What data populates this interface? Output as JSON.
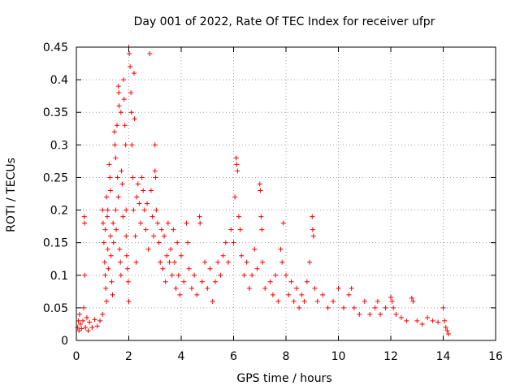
{
  "chart_data": {
    "type": "scatter",
    "title": "Day 001 of 2022, Rate Of TEC Index for receiver ufpr",
    "xlabel": "GPS time / hours",
    "ylabel": "ROTI / TECUs",
    "xlim": [
      0,
      16
    ],
    "ylim": [
      0,
      0.45
    ],
    "xticks": [
      "0",
      "2",
      "4",
      "6",
      "8",
      "10",
      "12",
      "14",
      "16"
    ],
    "yticks": [
      "0",
      "0.05",
      "0.1",
      "0.15",
      "0.2",
      "0.25",
      "0.3",
      "0.35",
      "0.4",
      "0.45"
    ],
    "grid": true,
    "marker": "plus",
    "color": "#ff0000",
    "points": [
      [
        0.05,
        0.02
      ],
      [
        0.08,
        0.03
      ],
      [
        0.1,
        0.015
      ],
      [
        0.12,
        0.04
      ],
      [
        0.15,
        0.025
      ],
      [
        0.2,
        0.018
      ],
      [
        0.25,
        0.03
      ],
      [
        0.28,
        0.05
      ],
      [
        0.3,
        0.19
      ],
      [
        0.31,
        0.18
      ],
      [
        0.32,
        0.1
      ],
      [
        0.35,
        0.02
      ],
      [
        0.4,
        0.035
      ],
      [
        0.45,
        0.015
      ],
      [
        0.5,
        0.028
      ],
      [
        0.6,
        0.02
      ],
      [
        0.7,
        0.032
      ],
      [
        0.8,
        0.022
      ],
      [
        0.9,
        0.03
      ],
      [
        1.0,
        0.04
      ],
      [
        1.0,
        0.2
      ],
      [
        1.02,
        0.18
      ],
      [
        1.05,
        0.15
      ],
      [
        1.08,
        0.12
      ],
      [
        1.1,
        0.1
      ],
      [
        1.12,
        0.08
      ],
      [
        1.15,
        0.06
      ],
      [
        1.1,
        0.17
      ],
      [
        1.15,
        0.22
      ],
      [
        1.18,
        0.19
      ],
      [
        1.2,
        0.2
      ],
      [
        1.2,
        0.14
      ],
      [
        1.22,
        0.11
      ],
      [
        1.25,
        0.27
      ],
      [
        1.28,
        0.25
      ],
      [
        1.3,
        0.23
      ],
      [
        1.3,
        0.16
      ],
      [
        1.32,
        0.13
      ],
      [
        1.35,
        0.09
      ],
      [
        1.38,
        0.07
      ],
      [
        1.4,
        0.18
      ],
      [
        1.42,
        0.15
      ],
      [
        1.45,
        0.32
      ],
      [
        1.47,
        0.3
      ],
      [
        1.5,
        0.28
      ],
      [
        1.5,
        0.2
      ],
      [
        1.52,
        0.17
      ],
      [
        1.55,
        0.33
      ],
      [
        1.57,
        0.25
      ],
      [
        1.6,
        0.22
      ],
      [
        1.6,
        0.39
      ],
      [
        1.62,
        0.38
      ],
      [
        1.63,
        0.36
      ],
      [
        1.65,
        0.14
      ],
      [
        1.68,
        0.12
      ],
      [
        1.7,
        0.35
      ],
      [
        1.7,
        0.1
      ],
      [
        1.72,
        0.26
      ],
      [
        1.75,
        0.24
      ],
      [
        1.78,
        0.19
      ],
      [
        1.8,
        0.4
      ],
      [
        1.82,
        0.37
      ],
      [
        1.85,
        0.33
      ],
      [
        1.88,
        0.3
      ],
      [
        1.9,
        0.2
      ],
      [
        1.9,
        0.16
      ],
      [
        1.92,
        0.13
      ],
      [
        1.95,
        0.11
      ],
      [
        1.98,
        0.09
      ],
      [
        2.0,
        0.06
      ],
      [
        2.0,
        0.45
      ],
      [
        2.02,
        0.44
      ],
      [
        2.05,
        0.42
      ],
      [
        2.08,
        0.38
      ],
      [
        2.1,
        0.35
      ],
      [
        2.12,
        0.3
      ],
      [
        2.15,
        0.25
      ],
      [
        2.18,
        0.2
      ],
      [
        2.2,
        0.41
      ],
      [
        2.22,
        0.34
      ],
      [
        2.25,
        0.16
      ],
      [
        2.28,
        0.12
      ],
      [
        2.3,
        0.22
      ],
      [
        2.35,
        0.24
      ],
      [
        2.4,
        0.21
      ],
      [
        2.45,
        0.18
      ],
      [
        2.5,
        0.25
      ],
      [
        2.55,
        0.23
      ],
      [
        2.6,
        0.2
      ],
      [
        2.65,
        0.17
      ],
      [
        2.7,
        0.21
      ],
      [
        2.75,
        0.14
      ],
      [
        2.8,
        0.44
      ],
      [
        2.85,
        0.23
      ],
      [
        2.9,
        0.19
      ],
      [
        2.95,
        0.16
      ],
      [
        3.0,
        0.3
      ],
      [
        3.0,
        0.26
      ],
      [
        3.02,
        0.25
      ],
      [
        3.05,
        0.2
      ],
      [
        3.1,
        0.18
      ],
      [
        3.15,
        0.15
      ],
      [
        3.2,
        0.12
      ],
      [
        3.25,
        0.17
      ],
      [
        3.3,
        0.11
      ],
      [
        3.35,
        0.16
      ],
      [
        3.4,
        0.09
      ],
      [
        3.45,
        0.13
      ],
      [
        3.5,
        0.18
      ],
      [
        3.55,
        0.12
      ],
      [
        3.6,
        0.14
      ],
      [
        3.65,
        0.1
      ],
      [
        3.7,
        0.17
      ],
      [
        3.75,
        0.12
      ],
      [
        3.8,
        0.08
      ],
      [
        3.85,
        0.15
      ],
      [
        3.9,
        0.1
      ],
      [
        3.95,
        0.07
      ],
      [
        4.0,
        0.13
      ],
      [
        4.1,
        0.09
      ],
      [
        4.2,
        0.18
      ],
      [
        4.25,
        0.15
      ],
      [
        4.3,
        0.11
      ],
      [
        4.4,
        0.08
      ],
      [
        4.5,
        0.1
      ],
      [
        4.6,
        0.07
      ],
      [
        4.7,
        0.19
      ],
      [
        4.72,
        0.18
      ],
      [
        4.8,
        0.09
      ],
      [
        4.9,
        0.12
      ],
      [
        5.0,
        0.08
      ],
      [
        5.1,
        0.11
      ],
      [
        5.2,
        0.06
      ],
      [
        5.3,
        0.09
      ],
      [
        5.4,
        0.12
      ],
      [
        5.5,
        0.1
      ],
      [
        5.6,
        0.13
      ],
      [
        5.7,
        0.15
      ],
      [
        5.8,
        0.12
      ],
      [
        5.9,
        0.17
      ],
      [
        6.0,
        0.15
      ],
      [
        6.05,
        0.22
      ],
      [
        6.1,
        0.28
      ],
      [
        6.12,
        0.27
      ],
      [
        6.15,
        0.26
      ],
      [
        6.2,
        0.19
      ],
      [
        6.25,
        0.17
      ],
      [
        6.3,
        0.13
      ],
      [
        6.4,
        0.1
      ],
      [
        6.5,
        0.12
      ],
      [
        6.6,
        0.08
      ],
      [
        6.7,
        0.1
      ],
      [
        6.8,
        0.14
      ],
      [
        6.9,
        0.11
      ],
      [
        7.0,
        0.24
      ],
      [
        7.02,
        0.23
      ],
      [
        7.05,
        0.19
      ],
      [
        7.08,
        0.17
      ],
      [
        7.1,
        0.12
      ],
      [
        7.2,
        0.08
      ],
      [
        7.4,
        0.09
      ],
      [
        7.5,
        0.07
      ],
      [
        7.6,
        0.1
      ],
      [
        7.7,
        0.06
      ],
      [
        7.8,
        0.14
      ],
      [
        7.85,
        0.12
      ],
      [
        7.9,
        0.18
      ],
      [
        8.0,
        0.1
      ],
      [
        8.1,
        0.07
      ],
      [
        8.2,
        0.09
      ],
      [
        8.3,
        0.06
      ],
      [
        8.4,
        0.08
      ],
      [
        8.5,
        0.05
      ],
      [
        8.6,
        0.07
      ],
      [
        8.7,
        0.06
      ],
      [
        8.8,
        0.09
      ],
      [
        8.9,
        0.12
      ],
      [
        9.0,
        0.19
      ],
      [
        9.02,
        0.17
      ],
      [
        9.05,
        0.16
      ],
      [
        9.1,
        0.08
      ],
      [
        9.2,
        0.06
      ],
      [
        9.4,
        0.07
      ],
      [
        9.6,
        0.05
      ],
      [
        9.8,
        0.06
      ],
      [
        10.0,
        0.08
      ],
      [
        10.2,
        0.05
      ],
      [
        10.4,
        0.07
      ],
      [
        10.5,
        0.08
      ],
      [
        10.6,
        0.05
      ],
      [
        10.8,
        0.04
      ],
      [
        11.0,
        0.06
      ],
      [
        11.2,
        0.04
      ],
      [
        11.4,
        0.05
      ],
      [
        11.5,
        0.06
      ],
      [
        11.6,
        0.04
      ],
      [
        11.8,
        0.05
      ],
      [
        12.0,
        0.066
      ],
      [
        12.05,
        0.06
      ],
      [
        12.1,
        0.05
      ],
      [
        12.2,
        0.04
      ],
      [
        12.4,
        0.035
      ],
      [
        12.6,
        0.03
      ],
      [
        12.8,
        0.065
      ],
      [
        12.85,
        0.06
      ],
      [
        13.0,
        0.03
      ],
      [
        13.2,
        0.025
      ],
      [
        13.4,
        0.035
      ],
      [
        13.6,
        0.03
      ],
      [
        13.8,
        0.028
      ],
      [
        14.0,
        0.05
      ],
      [
        14.05,
        0.03
      ],
      [
        14.1,
        0.02
      ],
      [
        14.15,
        0.015
      ],
      [
        14.2,
        0.01
      ]
    ]
  }
}
